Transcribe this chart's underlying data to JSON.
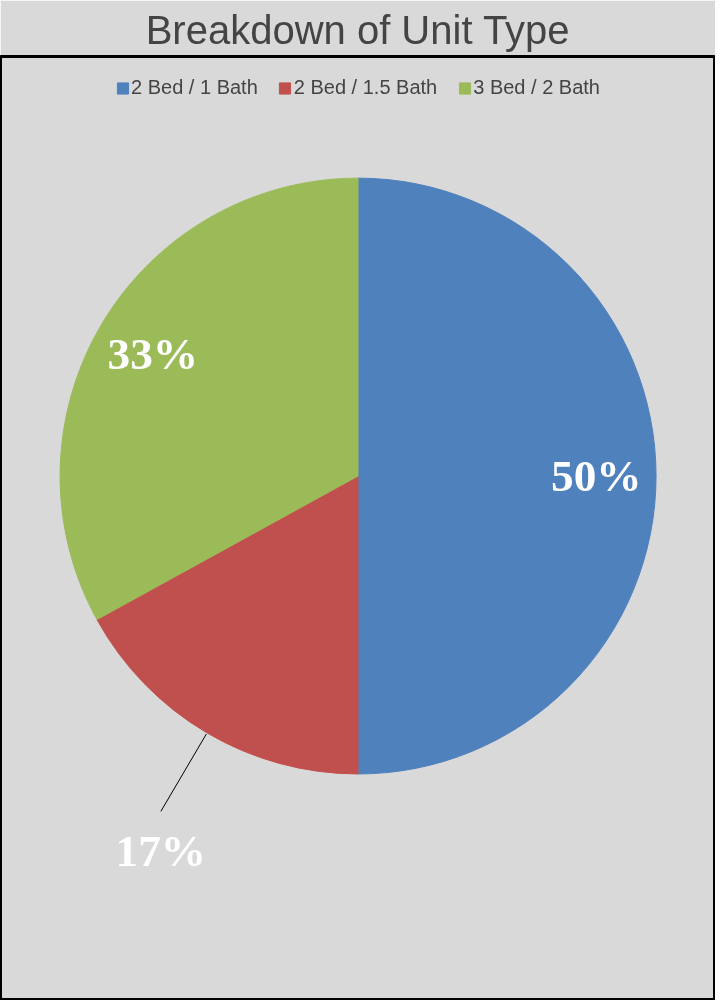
{
  "chart_data": {
    "type": "pie",
    "title": "Breakdown of Unit Type",
    "categories": [
      "2 Bed / 1 Bath",
      "2 Bed / 1.5 Bath",
      "3 Bed / 2 Bath"
    ],
    "values": [
      50,
      17,
      33
    ],
    "colors": [
      "#4f81bd",
      "#c0504d",
      "#9bbb59"
    ],
    "value_labels": [
      "50%",
      "17%",
      "33%"
    ],
    "legend": "top"
  }
}
